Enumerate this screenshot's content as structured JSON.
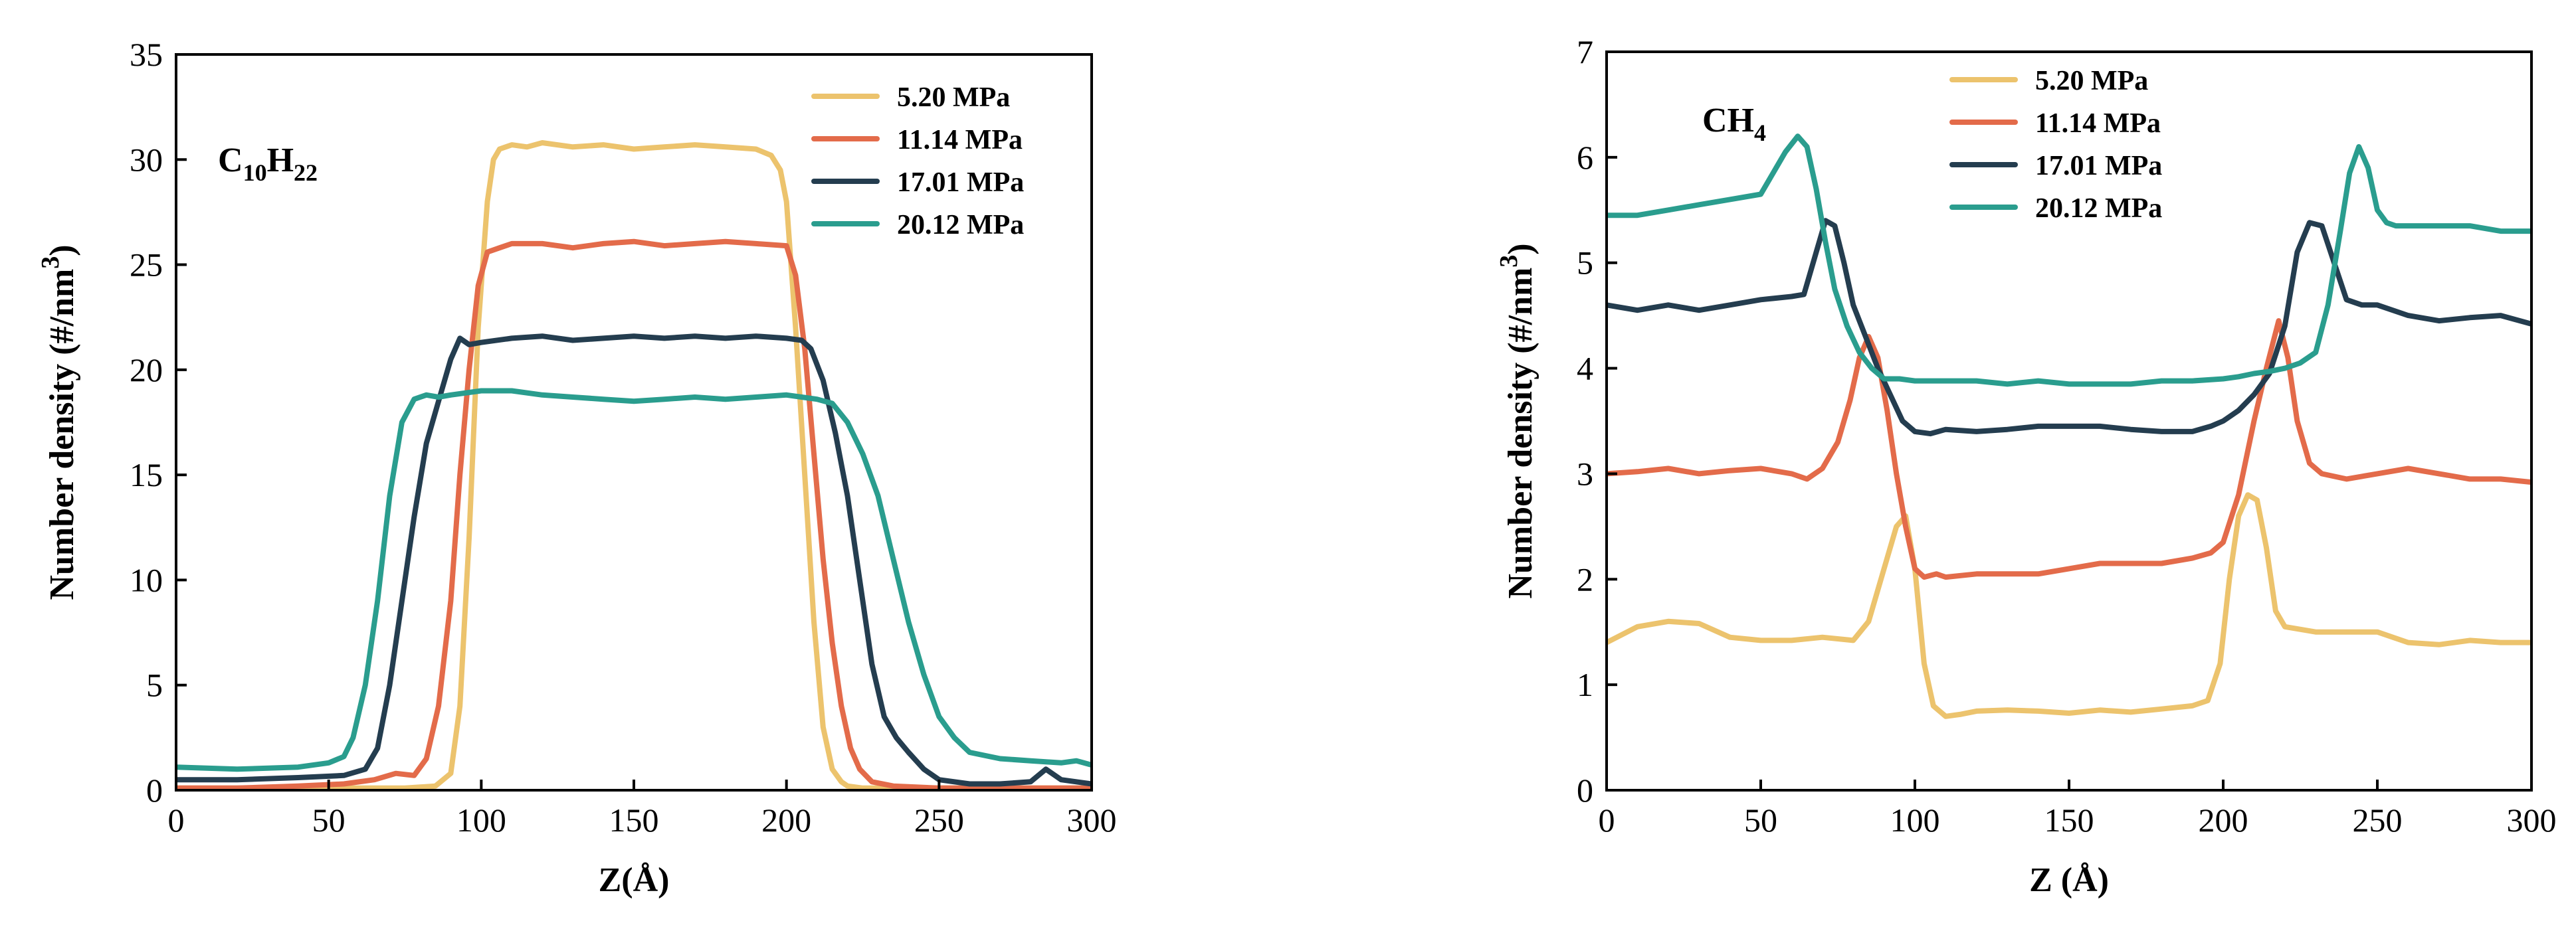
{
  "chart_data": [
    {
      "type": "line",
      "annotation": {
        "main": "C",
        "sub1": "10",
        "mid": "H",
        "sub2": "22"
      },
      "xlabel": "Z(Å)",
      "ylabel": "Number density",
      "ylabel_unit": "(#/nm",
      "ylabel_sup": "3",
      "ylabel_close": ")",
      "xlim": [
        0,
        300
      ],
      "ylim": [
        0,
        35
      ],
      "xticks": [
        "0",
        "50",
        "100",
        "150",
        "200",
        "250",
        "300"
      ],
      "yticks": [
        "0",
        "5",
        "10",
        "15",
        "20",
        "25",
        "30",
        "35"
      ],
      "legend_position": "top-right",
      "series": [
        {
          "name": "5.20 MPa",
          "color": "#ecc36d",
          "x": [
            0,
            20,
            40,
            60,
            75,
            85,
            90,
            93,
            96,
            99,
            102,
            104,
            106,
            110,
            115,
            120,
            130,
            140,
            150,
            160,
            170,
            180,
            190,
            195,
            198,
            200,
            203,
            206,
            209,
            212,
            215,
            218,
            220,
            225,
            250,
            275,
            300
          ],
          "y": [
            0.1,
            0.1,
            0.1,
            0.1,
            0.1,
            0.2,
            0.8,
            4,
            12,
            22,
            28,
            30,
            30.5,
            30.7,
            30.6,
            30.8,
            30.6,
            30.7,
            30.5,
            30.6,
            30.7,
            30.6,
            30.5,
            30.2,
            29.5,
            28,
            22,
            15,
            8,
            3,
            1,
            0.4,
            0.2,
            0.1,
            0.1,
            0.1,
            0.1
          ]
        },
        {
          "name": "11.14 MPa",
          "color": "#e36b4a",
          "x": [
            0,
            20,
            40,
            55,
            65,
            72,
            78,
            82,
            86,
            90,
            93,
            96,
            99,
            102,
            106,
            110,
            120,
            130,
            140,
            150,
            160,
            170,
            180,
            190,
            200,
            203,
            206,
            209,
            212,
            215,
            218,
            221,
            224,
            228,
            235,
            250,
            275,
            300
          ],
          "y": [
            0.1,
            0.1,
            0.2,
            0.3,
            0.5,
            0.8,
            0.7,
            1.5,
            4,
            9,
            15,
            20,
            24,
            25.6,
            25.8,
            26,
            26,
            25.8,
            26,
            26.1,
            25.9,
            26,
            26.1,
            26,
            25.9,
            24.5,
            21,
            16,
            11,
            7,
            4,
            2,
            1,
            0.4,
            0.2,
            0.1,
            0.1,
            0.1
          ]
        },
        {
          "name": "17.01 MPa",
          "color": "#243d4f",
          "x": [
            0,
            20,
            40,
            55,
            62,
            66,
            70,
            74,
            78,
            82,
            86,
            90,
            93,
            96,
            100,
            110,
            120,
            130,
            140,
            150,
            160,
            170,
            180,
            190,
            200,
            205,
            208,
            212,
            216,
            220,
            224,
            228,
            232,
            236,
            240,
            245,
            250,
            260,
            270,
            280,
            285,
            290,
            300
          ],
          "y": [
            0.5,
            0.5,
            0.6,
            0.7,
            1,
            2,
            5,
            9,
            13,
            16.5,
            18.5,
            20.5,
            21.5,
            21.2,
            21.3,
            21.5,
            21.6,
            21.4,
            21.5,
            21.6,
            21.5,
            21.6,
            21.5,
            21.6,
            21.5,
            21.4,
            21,
            19.5,
            17,
            14,
            10,
            6,
            3.5,
            2.5,
            1.8,
            1,
            0.5,
            0.3,
            0.3,
            0.4,
            1,
            0.5,
            0.3
          ]
        },
        {
          "name": "20.12 MPa",
          "color": "#2a9d8e",
          "x": [
            0,
            20,
            40,
            50,
            55,
            58,
            62,
            66,
            70,
            74,
            78,
            82,
            86,
            90,
            100,
            110,
            120,
            130,
            140,
            150,
            160,
            170,
            180,
            190,
            200,
            205,
            210,
            215,
            220,
            225,
            230,
            235,
            240,
            245,
            250,
            255,
            260,
            270,
            280,
            290,
            295,
            300
          ],
          "y": [
            1.1,
            1,
            1.1,
            1.3,
            1.6,
            2.5,
            5,
            9,
            14,
            17.5,
            18.6,
            18.8,
            18.7,
            18.8,
            19,
            19,
            18.8,
            18.7,
            18.6,
            18.5,
            18.6,
            18.7,
            18.6,
            18.7,
            18.8,
            18.7,
            18.6,
            18.4,
            17.5,
            16,
            14,
            11,
            8,
            5.5,
            3.5,
            2.5,
            1.8,
            1.5,
            1.4,
            1.3,
            1.4,
            1.2
          ]
        }
      ]
    },
    {
      "type": "line",
      "annotation": {
        "main": "CH",
        "sub1": "4",
        "mid": "",
        "sub2": ""
      },
      "xlabel": "Z (Å)",
      "ylabel": "Number density",
      "ylabel_unit": "(#/nm",
      "ylabel_sup": "3",
      "ylabel_close": ")",
      "xlim": [
        0,
        300
      ],
      "ylim": [
        0,
        7
      ],
      "xticks": [
        "0",
        "50",
        "100",
        "150",
        "200",
        "250",
        "300"
      ],
      "yticks": [
        "0",
        "1",
        "2",
        "3",
        "4",
        "5",
        "6",
        "7"
      ],
      "legend_position": "top-center",
      "series": [
        {
          "name": "5.20 MPa",
          "color": "#ecc36d",
          "x": [
            0,
            10,
            20,
            30,
            40,
            50,
            60,
            70,
            80,
            85,
            90,
            94,
            97,
            100,
            103,
            106,
            110,
            115,
            120,
            130,
            140,
            150,
            160,
            170,
            180,
            190,
            195,
            199,
            202,
            205,
            208,
            211,
            214,
            217,
            220,
            230,
            240,
            250,
            260,
            270,
            280,
            290,
            300
          ],
          "y": [
            1.4,
            1.55,
            1.6,
            1.58,
            1.45,
            1.42,
            1.42,
            1.45,
            1.42,
            1.6,
            2.1,
            2.5,
            2.6,
            2.1,
            1.2,
            0.8,
            0.7,
            0.72,
            0.75,
            0.76,
            0.75,
            0.73,
            0.76,
            0.74,
            0.77,
            0.8,
            0.85,
            1.2,
            2.0,
            2.6,
            2.8,
            2.75,
            2.3,
            1.7,
            1.55,
            1.5,
            1.5,
            1.5,
            1.4,
            1.38,
            1.42,
            1.4,
            1.4
          ]
        },
        {
          "name": "11.14 MPa",
          "color": "#e36b4a",
          "x": [
            0,
            10,
            20,
            30,
            40,
            50,
            60,
            65,
            70,
            75,
            79,
            82,
            85,
            88,
            91,
            94,
            97,
            100,
            103,
            107,
            110,
            120,
            130,
            140,
            150,
            160,
            170,
            180,
            190,
            196,
            200,
            205,
            210,
            214,
            218,
            221,
            224,
            228,
            232,
            240,
            250,
            260,
            270,
            280,
            290,
            300
          ],
          "y": [
            3,
            3.02,
            3.05,
            3.0,
            3.03,
            3.05,
            3.0,
            2.95,
            3.05,
            3.3,
            3.7,
            4.1,
            4.3,
            4.1,
            3.6,
            3.0,
            2.5,
            2.1,
            2.02,
            2.05,
            2.02,
            2.05,
            2.05,
            2.05,
            2.1,
            2.15,
            2.15,
            2.15,
            2.2,
            2.25,
            2.35,
            2.8,
            3.5,
            4.0,
            4.45,
            4.1,
            3.5,
            3.1,
            3.0,
            2.95,
            3.0,
            3.05,
            3.0,
            2.95,
            2.95,
            2.92
          ]
        },
        {
          "name": "17.01 MPa",
          "color": "#243d4f",
          "x": [
            0,
            10,
            20,
            30,
            40,
            50,
            60,
            64,
            68,
            71,
            74,
            77,
            80,
            84,
            88,
            92,
            96,
            100,
            105,
            110,
            120,
            130,
            140,
            150,
            160,
            170,
            180,
            190,
            196,
            200,
            205,
            210,
            215,
            220,
            224,
            228,
            232,
            236,
            240,
            245,
            250,
            260,
            270,
            280,
            290,
            300
          ],
          "y": [
            4.6,
            4.55,
            4.6,
            4.55,
            4.6,
            4.65,
            4.68,
            4.7,
            5.1,
            5.4,
            5.35,
            5.0,
            4.6,
            4.3,
            4.0,
            3.75,
            3.5,
            3.4,
            3.38,
            3.42,
            3.4,
            3.42,
            3.45,
            3.45,
            3.45,
            3.42,
            3.4,
            3.4,
            3.45,
            3.5,
            3.6,
            3.75,
            3.95,
            4.4,
            5.1,
            5.38,
            5.35,
            5.0,
            4.65,
            4.6,
            4.6,
            4.5,
            4.45,
            4.48,
            4.5,
            4.42
          ]
        },
        {
          "name": "20.12 MPa",
          "color": "#2a9d8e",
          "x": [
            0,
            10,
            20,
            30,
            40,
            50,
            55,
            58,
            62,
            65,
            68,
            71,
            74,
            78,
            82,
            86,
            90,
            95,
            100,
            110,
            120,
            130,
            140,
            150,
            160,
            170,
            180,
            190,
            200,
            205,
            210,
            215,
            220,
            225,
            230,
            234,
            238,
            241,
            244,
            247,
            250,
            253,
            256,
            260,
            270,
            280,
            290,
            300
          ],
          "y": [
            5.45,
            5.45,
            5.5,
            5.55,
            5.6,
            5.65,
            5.9,
            6.05,
            6.2,
            6.1,
            5.7,
            5.2,
            4.75,
            4.4,
            4.15,
            4.0,
            3.9,
            3.9,
            3.88,
            3.88,
            3.88,
            3.85,
            3.88,
            3.85,
            3.85,
            3.85,
            3.88,
            3.88,
            3.9,
            3.92,
            3.95,
            3.97,
            4.0,
            4.05,
            4.15,
            4.6,
            5.3,
            5.85,
            6.1,
            5.9,
            5.5,
            5.38,
            5.35,
            5.35,
            5.35,
            5.35,
            5.3,
            5.3
          ]
        }
      ]
    }
  ]
}
